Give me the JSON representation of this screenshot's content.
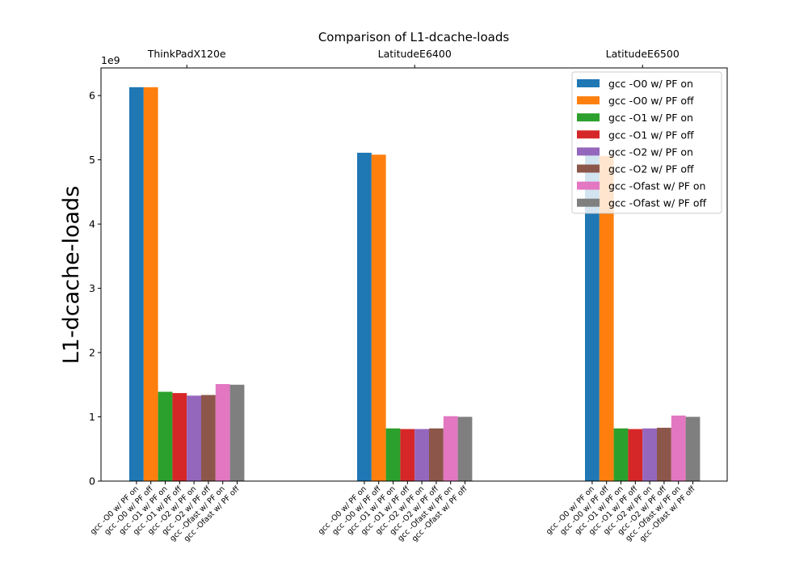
{
  "chart_data": {
    "type": "bar",
    "title": "Comparison of L1-dcache-loads",
    "ylabel": "L1-dcache-loads",
    "xlabel": "",
    "y_scale_label": "1e9",
    "ylim": [
      0,
      6.43
    ],
    "yticks": [
      0,
      1,
      2,
      3,
      4,
      5,
      6
    ],
    "y_unit_multiplier": 1000000000,
    "grid": false,
    "legend_position": "top-right",
    "groups": [
      "ThinkPadX120e",
      "LatitudeE6400",
      "LatitudeE6500"
    ],
    "series": [
      {
        "name": "gcc -O0 w/ PF on",
        "color": "#1f77b4",
        "values": [
          6.13,
          5.11,
          5.07
        ]
      },
      {
        "name": "gcc -O0 w/ PF off",
        "color": "#ff7f0e",
        "values": [
          6.13,
          5.08,
          5.06
        ]
      },
      {
        "name": "gcc -O1 w/ PF on",
        "color": "#2ca02c",
        "values": [
          1.39,
          0.82,
          0.82
        ]
      },
      {
        "name": "gcc -O1 w/ PF off",
        "color": "#d62728",
        "values": [
          1.37,
          0.81,
          0.81
        ]
      },
      {
        "name": "gcc -O2 w/ PF on",
        "color": "#9467bd",
        "values": [
          1.33,
          0.81,
          0.82
        ]
      },
      {
        "name": "gcc -O2 w/ PF off",
        "color": "#8c564b",
        "values": [
          1.34,
          0.82,
          0.83
        ]
      },
      {
        "name": "gcc -Ofast w/ PF on",
        "color": "#e377c2",
        "values": [
          1.51,
          1.01,
          1.02
        ]
      },
      {
        "name": "gcc -Ofast w/ PF off",
        "color": "#7f7f7f",
        "values": [
          1.5,
          1.0,
          1.0
        ]
      }
    ],
    "x_tick_labels": [
      "gcc -O0 w/ PF on",
      "gcc -O0 w/ PF off",
      "gcc -O1 w/ PF on",
      "gcc -O1 w/ PF off",
      "gcc -O2 w/ PF on",
      "gcc -O2 w/ PF off",
      "gcc -Ofast w/ PF on",
      "gcc -Ofast w/ PF off"
    ]
  }
}
